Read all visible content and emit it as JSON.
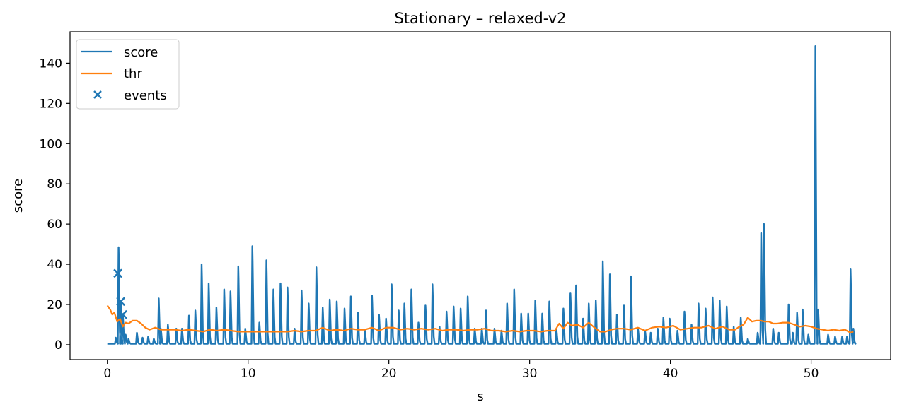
{
  "chart_data": {
    "type": "line",
    "title": "Stationary – relaxed-v2",
    "xlabel": "s",
    "ylabel": "score",
    "xlim": [
      -2.65,
      55.65
    ],
    "ylim": [
      -7.4,
      155.6
    ],
    "xticks": [
      0,
      10,
      20,
      30,
      40,
      50
    ],
    "yticks": [
      0,
      20,
      40,
      60,
      80,
      100,
      120,
      140
    ],
    "grid": false,
    "legend": {
      "position": "top-left",
      "entries": [
        "score",
        "thr",
        "events"
      ]
    },
    "colors": {
      "score": "#1f77b4",
      "thr": "#ff7f0e",
      "events": "#1f77b4"
    },
    "score_baseline": 0.5,
    "score_spikes": [
      [
        0.6,
        3.5
      ],
      [
        0.8,
        48.5
      ],
      [
        0.95,
        22.0
      ],
      [
        1.1,
        15.0
      ],
      [
        1.3,
        5.0
      ],
      [
        1.5,
        3.0
      ],
      [
        2.1,
        6.0
      ],
      [
        2.5,
        3.5
      ],
      [
        2.9,
        4.0
      ],
      [
        3.3,
        3.0
      ],
      [
        3.65,
        23.0
      ],
      [
        3.8,
        8.0
      ],
      [
        4.3,
        10.0
      ],
      [
        4.9,
        8.0
      ],
      [
        5.3,
        8.0
      ],
      [
        5.8,
        14.5
      ],
      [
        6.25,
        17.0
      ],
      [
        6.7,
        40.0
      ],
      [
        7.2,
        30.5
      ],
      [
        7.75,
        18.5
      ],
      [
        8.3,
        27.5
      ],
      [
        8.75,
        26.5
      ],
      [
        9.3,
        39.0
      ],
      [
        9.8,
        8.0
      ],
      [
        10.3,
        49.0
      ],
      [
        10.8,
        11.0
      ],
      [
        11.3,
        42.0
      ],
      [
        11.8,
        27.5
      ],
      [
        12.3,
        30.5
      ],
      [
        12.8,
        28.5
      ],
      [
        13.3,
        8.0
      ],
      [
        13.8,
        27.0
      ],
      [
        14.3,
        20.5
      ],
      [
        14.85,
        38.5
      ],
      [
        15.3,
        18.5
      ],
      [
        15.8,
        22.5
      ],
      [
        16.3,
        21.5
      ],
      [
        16.85,
        18.0
      ],
      [
        17.3,
        24.0
      ],
      [
        17.8,
        16.0
      ],
      [
        18.3,
        7.0
      ],
      [
        18.8,
        24.5
      ],
      [
        19.3,
        15.0
      ],
      [
        19.8,
        13.0
      ],
      [
        20.2,
        30.0
      ],
      [
        20.7,
        17.0
      ],
      [
        21.1,
        20.5
      ],
      [
        21.6,
        27.5
      ],
      [
        22.1,
        11.0
      ],
      [
        22.6,
        19.5
      ],
      [
        23.1,
        30.0
      ],
      [
        23.6,
        9.0
      ],
      [
        24.1,
        16.5
      ],
      [
        24.6,
        19.0
      ],
      [
        25.1,
        18.0
      ],
      [
        25.6,
        24.0
      ],
      [
        26.1,
        8.0
      ],
      [
        26.6,
        8.0
      ],
      [
        26.9,
        17.0
      ],
      [
        27.5,
        8.0
      ],
      [
        28.0,
        7.0
      ],
      [
        28.4,
        20.5
      ],
      [
        28.9,
        27.5
      ],
      [
        29.4,
        15.5
      ],
      [
        29.9,
        15.5
      ],
      [
        30.4,
        22.0
      ],
      [
        30.9,
        15.5
      ],
      [
        31.4,
        21.5
      ],
      [
        31.9,
        8.0
      ],
      [
        32.4,
        18.0
      ],
      [
        32.9,
        25.5
      ],
      [
        33.3,
        29.5
      ],
      [
        33.8,
        13.0
      ],
      [
        34.2,
        20.5
      ],
      [
        34.7,
        22.0
      ],
      [
        35.2,
        41.5
      ],
      [
        35.7,
        35.0
      ],
      [
        36.2,
        15.0
      ],
      [
        36.7,
        19.5
      ],
      [
        37.2,
        34.0
      ],
      [
        37.7,
        8.0
      ],
      [
        38.2,
        7.0
      ],
      [
        38.6,
        6.0
      ],
      [
        39.1,
        8.0
      ],
      [
        39.5,
        13.5
      ],
      [
        39.95,
        13.0
      ],
      [
        40.5,
        7.0
      ],
      [
        41.0,
        16.5
      ],
      [
        41.5,
        10.0
      ],
      [
        42.0,
        20.5
      ],
      [
        42.5,
        18.0
      ],
      [
        43.0,
        23.5
      ],
      [
        43.5,
        22.0
      ],
      [
        44.0,
        19.0
      ],
      [
        44.5,
        9.0
      ],
      [
        45.0,
        13.5
      ],
      [
        45.5,
        3.0
      ],
      [
        46.2,
        6.0
      ],
      [
        46.45,
        55.5
      ],
      [
        46.65,
        60.0
      ],
      [
        47.3,
        8.0
      ],
      [
        47.7,
        6.0
      ],
      [
        48.4,
        20.0
      ],
      [
        48.7,
        6.0
      ],
      [
        49.0,
        16.0
      ],
      [
        49.4,
        17.5
      ],
      [
        49.8,
        5.0
      ],
      [
        50.3,
        148.5
      ],
      [
        50.5,
        17.5
      ],
      [
        51.2,
        5.0
      ],
      [
        51.7,
        4.0
      ],
      [
        52.2,
        4.0
      ],
      [
        52.55,
        4.0
      ],
      [
        52.8,
        37.5
      ],
      [
        53.0,
        8.0
      ]
    ],
    "thr": {
      "x": [
        0.0,
        0.2,
        0.35,
        0.5,
        0.7,
        0.9,
        1.1,
        1.3,
        1.5,
        1.8,
        2.1,
        2.4,
        2.7,
        3.0,
        3.4,
        3.8,
        4.3,
        4.8,
        5.3,
        5.8,
        6.3,
        6.8,
        7.3,
        7.8,
        8.3,
        8.8,
        9.3,
        9.8,
        10.3,
        10.8,
        11.3,
        11.8,
        12.3,
        12.8,
        13.3,
        13.8,
        14.3,
        14.8,
        15.3,
        15.8,
        16.3,
        16.8,
        17.3,
        17.8,
        18.3,
        18.8,
        19.3,
        19.8,
        20.3,
        20.8,
        21.3,
        21.8,
        22.3,
        22.8,
        23.3,
        23.8,
        24.3,
        24.8,
        25.3,
        25.8,
        26.3,
        26.8,
        27.3,
        27.8,
        28.3,
        28.8,
        29.3,
        29.8,
        30.3,
        30.8,
        31.3,
        31.8,
        32.1,
        32.4,
        32.7,
        33.0,
        33.4,
        33.8,
        34.2,
        34.6,
        35.0,
        35.4,
        35.8,
        36.2,
        36.7,
        37.2,
        37.7,
        38.2,
        38.7,
        39.2,
        39.7,
        40.2,
        40.7,
        41.2,
        41.7,
        42.2,
        42.7,
        43.2,
        43.7,
        44.2,
        44.6,
        44.9,
        45.2,
        45.5,
        45.8,
        46.1,
        46.4,
        46.7,
        47.0,
        47.3,
        47.6,
        48.0,
        48.4,
        48.8,
        49.2,
        49.6,
        50.0,
        50.4,
        50.8,
        51.2,
        51.6,
        52.0,
        52.4,
        52.8,
        53.0
      ],
      "y": [
        19.5,
        17.5,
        15.0,
        16.0,
        11.5,
        13.0,
        9.0,
        11.0,
        10.5,
        12.0,
        12.0,
        10.5,
        8.5,
        7.5,
        8.5,
        7.5,
        7.5,
        7.5,
        7.0,
        7.5,
        7.0,
        6.5,
        7.5,
        7.0,
        7.5,
        7.0,
        6.5,
        6.5,
        6.5,
        6.5,
        6.5,
        6.5,
        6.5,
        6.5,
        7.0,
        6.5,
        7.0,
        7.0,
        8.5,
        7.0,
        7.5,
        7.0,
        8.0,
        7.5,
        7.5,
        8.5,
        7.0,
        8.5,
        8.5,
        7.5,
        8.0,
        7.5,
        8.0,
        7.5,
        8.0,
        7.0,
        7.5,
        7.5,
        7.0,
        7.5,
        7.5,
        8.0,
        7.0,
        7.0,
        6.5,
        7.0,
        6.5,
        7.0,
        7.0,
        6.5,
        7.0,
        7.0,
        10.5,
        8.0,
        11.0,
        9.5,
        10.0,
        8.5,
        11.0,
        8.5,
        6.5,
        6.5,
        7.5,
        8.0,
        8.0,
        7.5,
        8.5,
        7.0,
        8.5,
        9.0,
        8.5,
        9.5,
        7.5,
        8.0,
        8.5,
        8.5,
        9.5,
        8.0,
        9.0,
        7.5,
        7.5,
        9.0,
        10.0,
        13.5,
        11.5,
        12.0,
        12.0,
        11.5,
        11.5,
        10.5,
        10.5,
        11.0,
        11.0,
        10.0,
        9.0,
        9.5,
        9.0,
        8.0,
        7.5,
        7.0,
        7.5,
        7.0,
        7.5,
        6.0,
        6.5
      ]
    },
    "events": {
      "x": [
        0.75,
        0.95,
        1.1
      ],
      "y": [
        35.5,
        21.5,
        15.0
      ]
    }
  }
}
